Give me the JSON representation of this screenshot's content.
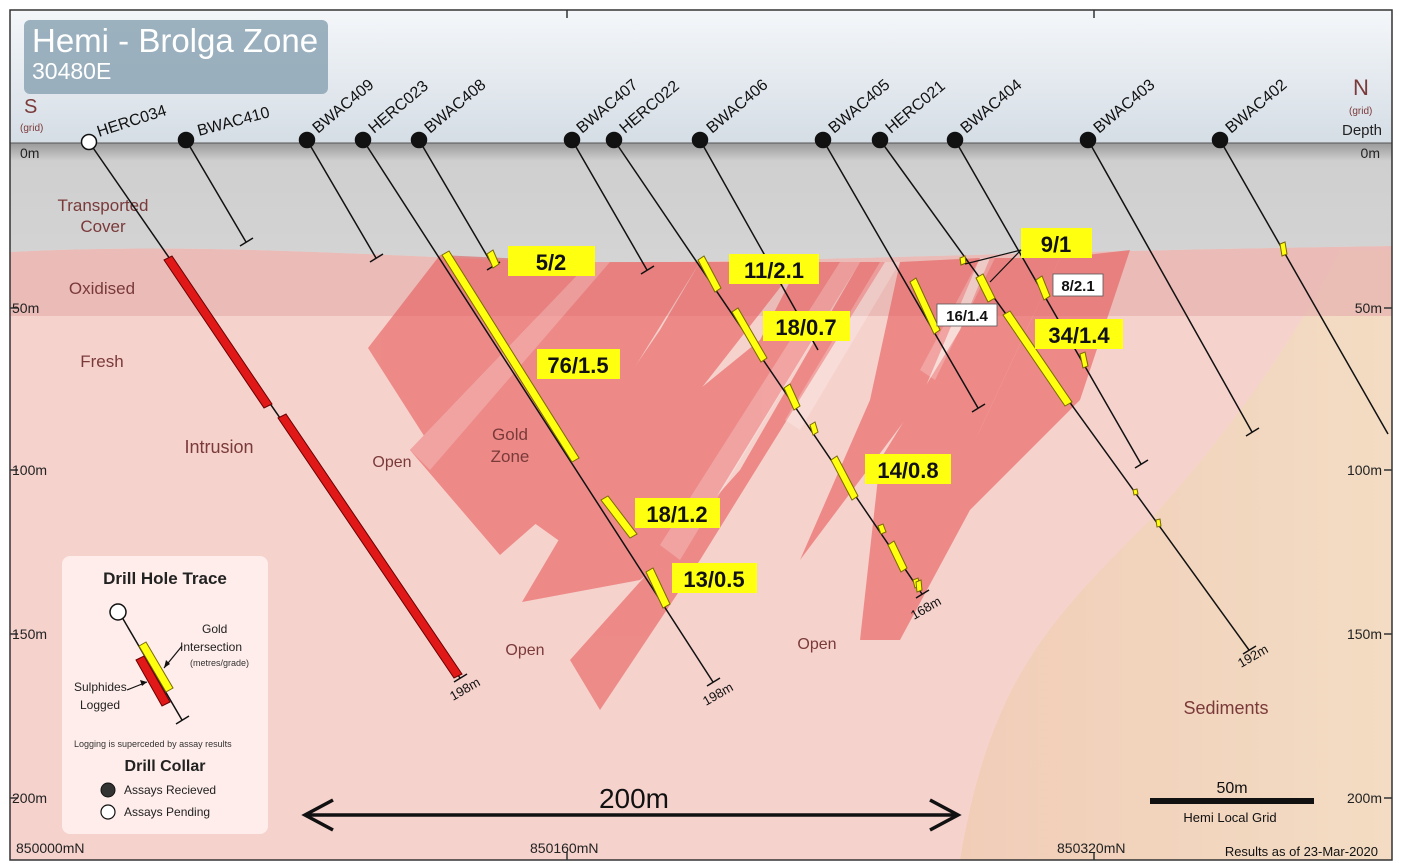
{
  "title": "Hemi - Brolga Zone",
  "subtitle": "30480E",
  "direction": {
    "south": "S",
    "south_sub": "(grid)",
    "north": "N",
    "north_sub": "(grid)",
    "depth": "Depth"
  },
  "depth_labels_left": [
    "0m",
    "50m",
    "100m",
    "150m",
    "200m"
  ],
  "depth_labels_right": [
    "0m",
    "50m",
    "100m",
    "150m",
    "200m"
  ],
  "northing_labels": [
    "850000mN",
    "850160mN",
    "850320mN"
  ],
  "layers": {
    "transported_cover": "Transported\nCover",
    "transported_cover_l1": "Transported",
    "transported_cover_l2": "Cover",
    "oxidised": "Oxidised",
    "fresh": "Fresh",
    "intrusion": "Intrusion",
    "sediments": "Sediments"
  },
  "zone_labels": {
    "gold_zone_l1": "Gold",
    "gold_zone_l2": "Zone",
    "open_1": "Open",
    "open_2": "Open",
    "open_3": "Open"
  },
  "holes": [
    {
      "name": "HERC034",
      "status": "pending"
    },
    {
      "name": "BWAC410",
      "status": "received"
    },
    {
      "name": "BWAC409",
      "status": "received"
    },
    {
      "name": "HERC023",
      "status": "received"
    },
    {
      "name": "BWAC408",
      "status": "received"
    },
    {
      "name": "BWAC407",
      "status": "received"
    },
    {
      "name": "HERC022",
      "status": "received"
    },
    {
      "name": "BWAC406",
      "status": "received"
    },
    {
      "name": "BWAC405",
      "status": "received"
    },
    {
      "name": "HERC021",
      "status": "received"
    },
    {
      "name": "BWAC404",
      "status": "received"
    },
    {
      "name": "BWAC403",
      "status": "received"
    },
    {
      "name": "BWAC402",
      "status": "received"
    }
  ],
  "hole_depths": {
    "herc034": "198m",
    "herc023": "198m",
    "herc022": "168m",
    "herc021": "192m"
  },
  "intersections": {
    "i1": "5/2",
    "i2": "76/1.5",
    "i3": "11/2.1",
    "i4": "18/0.7",
    "i5": "18/1.2",
    "i6": "13/0.5",
    "i7": "14/0.8",
    "i8": "9/1",
    "i9": "8/2.1",
    "i10": "16/1.4",
    "i11": "34/1.4"
  },
  "scale_arrow_label": "200m",
  "scale_bar": {
    "label": "50m",
    "sub": "Hemi Local Grid"
  },
  "results_note": "Results as of 23-Mar-2020",
  "legend": {
    "title": "Drill Hole Trace",
    "gold": "Gold",
    "intersection": "Intersection",
    "metres_grade": "(metres/grade)",
    "sulphides": "Sulphides",
    "logged": "Logged",
    "note": "Logging is superceded by assay results",
    "collar_title": "Drill Collar",
    "received": "Assays Recieved",
    "pending": "Assays Pending"
  },
  "colors": {
    "gold_intersection": "#ffff00",
    "sulphides": "#e02020",
    "cover": "#c9c9c9",
    "gold_zone": "#e84c4c",
    "fresh_rock": "#f5cfcb",
    "sediments": "#f2d8be"
  }
}
